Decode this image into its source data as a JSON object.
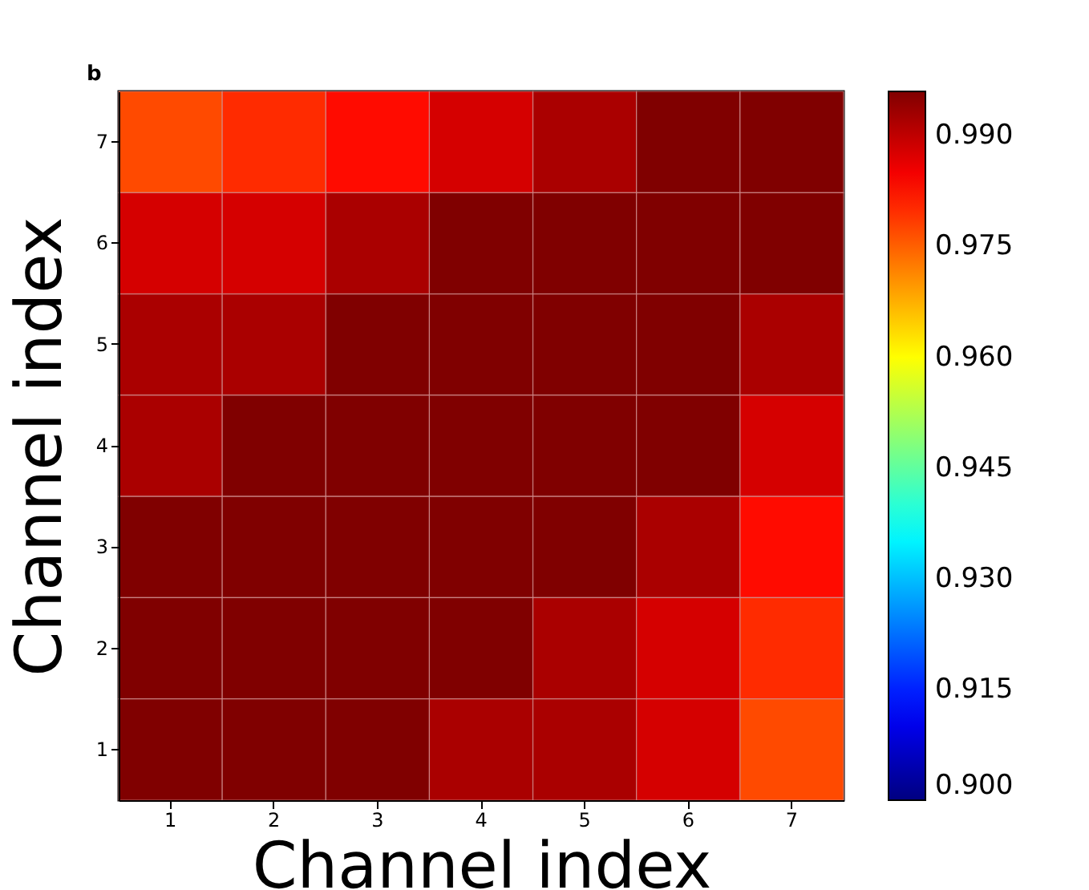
{
  "chart_data": {
    "type": "heatmap",
    "xlabel": "Channel index",
    "ylabel": "Channel index",
    "annotations": [
      "b"
    ],
    "categories": [
      "1",
      "2",
      "3",
      "4",
      "5",
      "6",
      "7"
    ],
    "y_categories": [
      "7",
      "6",
      "5",
      "4",
      "3",
      "2",
      "1"
    ],
    "cells": [
      [
        0.977,
        0.98,
        0.983,
        0.988,
        0.992,
        0.996,
        0.996
      ],
      [
        0.988,
        0.988,
        0.992,
        0.996,
        0.996,
        0.996,
        0.996
      ],
      [
        0.992,
        0.992,
        0.996,
        0.996,
        0.996,
        0.996,
        0.992
      ],
      [
        0.992,
        0.996,
        0.996,
        0.996,
        0.996,
        0.996,
        0.988
      ],
      [
        0.996,
        0.996,
        0.996,
        0.996,
        0.996,
        0.992,
        0.983
      ],
      [
        0.996,
        0.996,
        0.996,
        0.996,
        0.992,
        0.988,
        0.98
      ],
      [
        0.996,
        0.996,
        0.996,
        0.992,
        0.992,
        0.988,
        0.977
      ]
    ],
    "clim": [
      0.9,
      0.996
    ],
    "cticks": [
      {
        "value": 0.9,
        "label": "0.900"
      },
      0.915,
      {
        "value": 0.93,
        "label": "0.930"
      },
      0.945,
      {
        "value": 0.96,
        "label": "0.960"
      },
      0.975,
      {
        "value": 0.99,
        "label": "0.990"
      }
    ]
  }
}
